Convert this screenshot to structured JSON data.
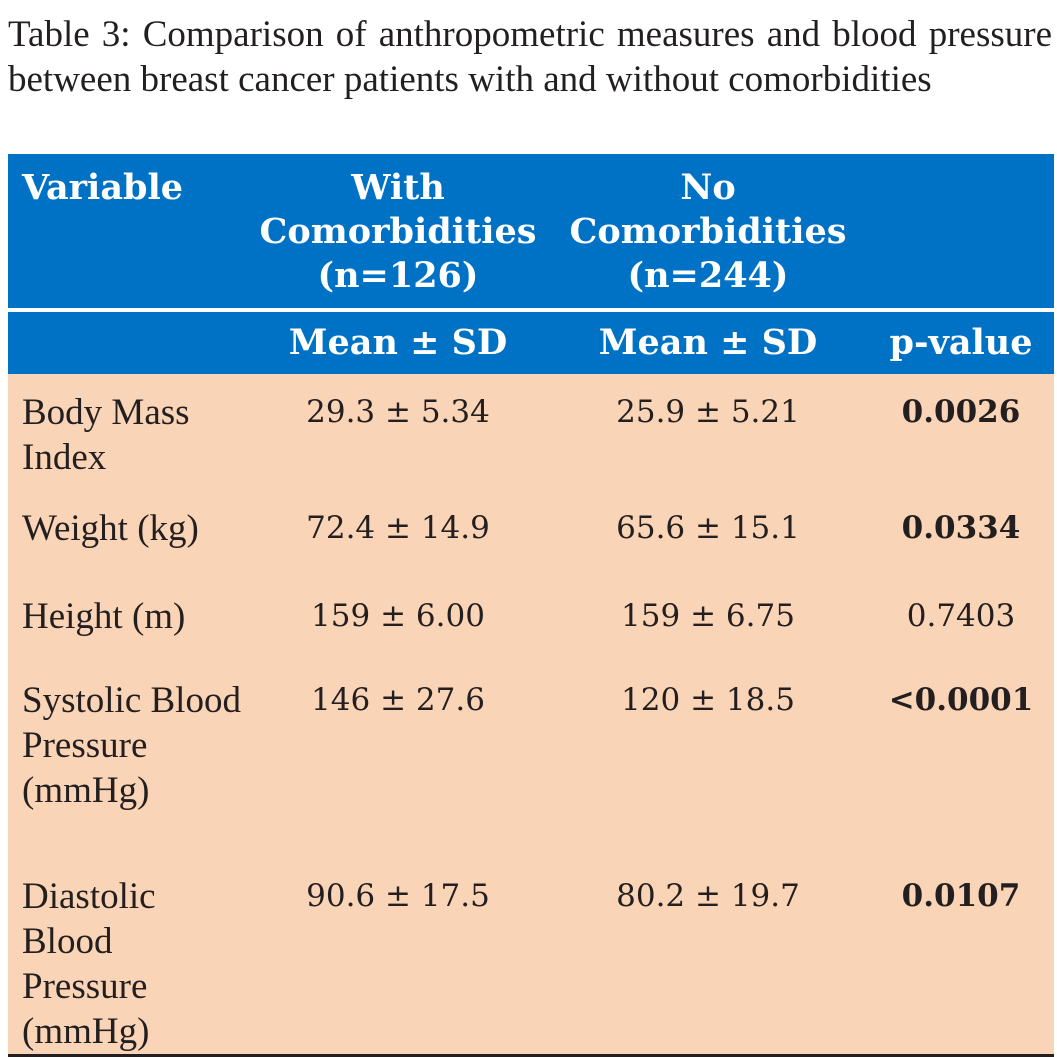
{
  "caption": "Table 3: Comparison of anthropometric measures and blood pressure between breast cancer patients with and without comorbidities",
  "table": {
    "header_row1": {
      "variable": "Variable",
      "with_comorbidities": "With Comorbidities (n=126)",
      "no_comorbidities": "No Comorbidities (n=244)",
      "blank": ""
    },
    "header_row2": {
      "blank": "",
      "with_stat": "Mean ± SD",
      "no_stat": "Mean ± SD",
      "pvalue": "p-value"
    },
    "rows": [
      {
        "variable": "Body Mass Index",
        "with": "29.3 ± 5.34",
        "without": "25.9 ± 5.21",
        "p": "0.0026",
        "significant": true
      },
      {
        "variable": "Weight (kg)",
        "with": "72.4 ± 14.9",
        "without": "65.6 ± 15.1",
        "p": "0.0334",
        "significant": true
      },
      {
        "variable": "Height (m)",
        "with": "159 ± 6.00",
        "without": "159 ± 6.75",
        "p": "0.7403",
        "significant": false
      },
      {
        "variable": "Systolic Blood Pressure (mmHg)",
        "with": "146 ± 27.6",
        "without": "120 ± 18.5",
        "p": "<0.0001",
        "significant": true
      },
      {
        "variable": "Diastolic Blood Pressure (mmHg)",
        "with": "90.6 ± 17.5",
        "without": "80.2 ± 19.7",
        "p": "0.0107",
        "significant": true
      }
    ]
  },
  "colors": {
    "header_bg": "#0072c6",
    "body_bg": "#fad4b6",
    "text": "#231f20"
  }
}
